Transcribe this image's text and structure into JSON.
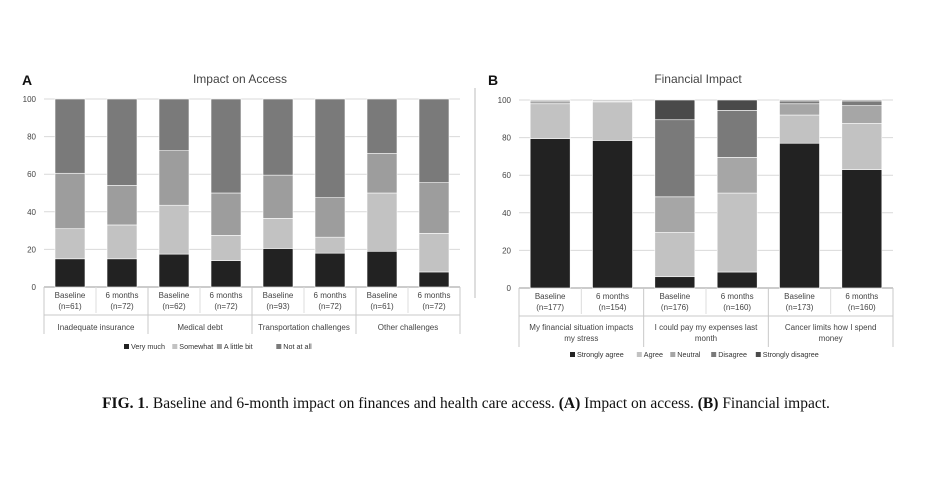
{
  "figure": {
    "caption_fig": "FIG. 1",
    "caption_mid": ". Baseline and 6-month impact on finances and health care access. ",
    "caption_a": "(A)",
    "caption_mid2": " Impact on access. ",
    "caption_b": "(B)",
    "caption_end": " Financial impact."
  },
  "chart_data": [
    {
      "panel": "A",
      "type": "bar",
      "stacked": true,
      "title": "Impact on Access",
      "ylim": [
        0,
        100
      ],
      "yticks": [
        0,
        20,
        40,
        60,
        80,
        100
      ],
      "grid": true,
      "legend_position": "bottom",
      "groups": [
        "Inadequate insurance",
        "Medical debt",
        "Transportation challenges",
        "Other challenges"
      ],
      "categories": [
        "Baseline",
        "6 months",
        "Baseline",
        "6 months",
        "Baseline",
        "6 months",
        "Baseline",
        "6 months"
      ],
      "ns": [
        "(n=61)",
        "(n=72)",
        "(n=62)",
        "(n=72)",
        "(n=93)",
        "(n=72)",
        "(n=61)",
        "(n=72)"
      ],
      "series": [
        {
          "name": "Very much",
          "color": "#222222",
          "values": [
            15,
            15,
            17.5,
            14,
            20.5,
            18,
            19,
            8
          ]
        },
        {
          "name": "Somewhat",
          "color": "#c2c2c2",
          "values": [
            16,
            18,
            26,
            13.5,
            16,
            8.5,
            31,
            20.5
          ]
        },
        {
          "name": "A little bit",
          "color": "#9d9d9d",
          "values": [
            29.5,
            21,
            29,
            22.5,
            23,
            21,
            21,
            27
          ]
        },
        {
          "name": "Not at all",
          "color": "#7a7a7a",
          "values": [
            39.5,
            46,
            27.5,
            50,
            40.5,
            52.5,
            29,
            44.5
          ]
        }
      ]
    },
    {
      "panel": "B",
      "type": "bar",
      "stacked": true,
      "title": "Financial Impact",
      "ylim": [
        0,
        100
      ],
      "yticks": [
        0,
        20,
        40,
        60,
        80,
        100
      ],
      "grid": true,
      "legend_position": "bottom",
      "groups": [
        "My financial situation impacts my stress",
        "I could pay my expenses last month",
        "Cancer limits how I spend money"
      ],
      "group_lines": [
        [
          "My financial situation impacts",
          "my stress"
        ],
        [
          "I could pay my expenses last",
          "month"
        ],
        [
          "Cancer limits how I spend",
          "money"
        ]
      ],
      "categories": [
        "Baseline",
        "6 months",
        "Baseline",
        "6 months",
        "Baseline",
        "6 months"
      ],
      "ns": [
        "(n=177)",
        "(n=154)",
        "(n=176)",
        "(n=160)",
        "(n=173)",
        "(n=160)"
      ],
      "series": [
        {
          "name": "Strongly agree",
          "color": "#222222",
          "values": [
            79.5,
            78.5,
            6,
            8.5,
            77,
            63
          ]
        },
        {
          "name": "Agree",
          "color": "#c2c2c2",
          "values": [
            18.5,
            20.5,
            23.5,
            42,
            15,
            24.5
          ]
        },
        {
          "name": "Neutral",
          "color": "#a6a6a6",
          "values": [
            1.5,
            0.5,
            19,
            19,
            6,
            9.5
          ]
        },
        {
          "name": "Disagree",
          "color": "#7a7a7a",
          "values": [
            0.5,
            0.5,
            41,
            25,
            1.5,
            2.5
          ]
        },
        {
          "name": "Strongly disagree",
          "color": "#4a4a4a",
          "values": [
            0,
            0,
            10.5,
            5.5,
            0.5,
            0.5
          ]
        }
      ]
    }
  ]
}
